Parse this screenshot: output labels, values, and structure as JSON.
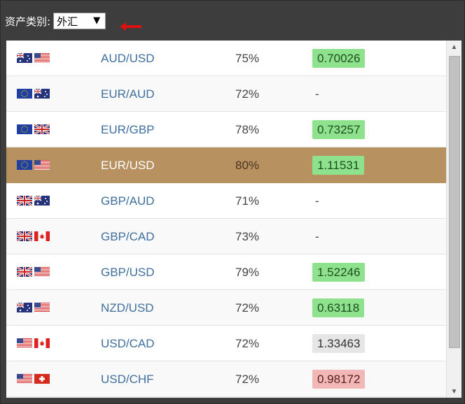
{
  "header": {
    "label": "资产类别:",
    "select_value": "外汇"
  },
  "rows": [
    {
      "flags": [
        "au-flag-icon",
        "us-flag-icon"
      ],
      "symbol": "AUD/USD",
      "payout": "75%",
      "price": "0.70026",
      "state": "up"
    },
    {
      "flags": [
        "eu-flag-icon",
        "au-flag-icon"
      ],
      "symbol": "EUR/AUD",
      "payout": "72%",
      "price": "-",
      "state": "none"
    },
    {
      "flags": [
        "eu-flag-icon",
        "uk-flag-icon"
      ],
      "symbol": "EUR/GBP",
      "payout": "78%",
      "price": "0.73257",
      "state": "up"
    },
    {
      "flags": [
        "eu-flag-icon",
        "us-flag-icon"
      ],
      "symbol": "EUR/USD",
      "payout": "80%",
      "price": "1.11531",
      "state": "up",
      "selected": true
    },
    {
      "flags": [
        "uk-flag-icon",
        "au-flag-icon"
      ],
      "symbol": "GBP/AUD",
      "payout": "71%",
      "price": "-",
      "state": "none"
    },
    {
      "flags": [
        "uk-flag-icon",
        "ca-flag-icon"
      ],
      "symbol": "GBP/CAD",
      "payout": "73%",
      "price": "-",
      "state": "none"
    },
    {
      "flags": [
        "uk-flag-icon",
        "us-flag-icon"
      ],
      "symbol": "GBP/USD",
      "payout": "79%",
      "price": "1.52246",
      "state": "up"
    },
    {
      "flags": [
        "au-flag-icon",
        "us-flag-icon"
      ],
      "symbol": "NZD/USD",
      "payout": "72%",
      "price": "0.63118",
      "state": "up"
    },
    {
      "flags": [
        "us-flag-icon",
        "ca-flag-icon"
      ],
      "symbol": "USD/CAD",
      "payout": "72%",
      "price": "1.33463",
      "state": "flat"
    },
    {
      "flags": [
        "us-flag-icon",
        "ch-flag-icon"
      ],
      "symbol": "USD/CHF",
      "payout": "72%",
      "price": "0.98172",
      "state": "down"
    }
  ],
  "colors": {
    "up": "#8ee28e",
    "down": "#f2b7b7",
    "flat": "#e6e6e6",
    "selected_row": "#b79160",
    "link": "#3f6f9e"
  }
}
